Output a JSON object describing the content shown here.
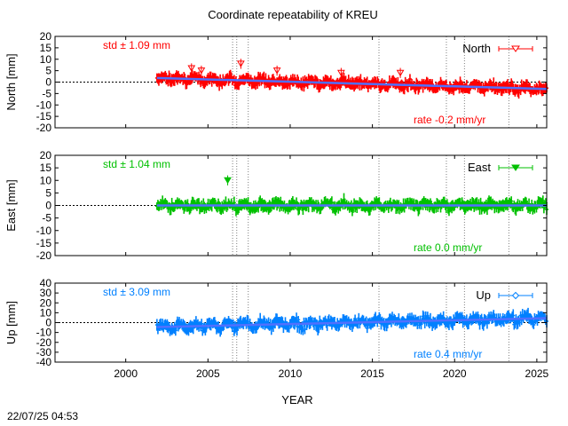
{
  "title": "Coordinate repeatability of KREU",
  "xlabel": "YEAR",
  "timestamp": "22/07/25 04:53",
  "colors": {
    "north": "#ff0000",
    "east": "#00c000",
    "up": "#0080ff",
    "trend": "#5070ff",
    "frame": "#000000",
    "event_lines": "#808080"
  },
  "chart_data": [
    {
      "type": "scatter",
      "component": "North",
      "ylabel": "North [mm]",
      "legend": "North",
      "legend_position": "top-right",
      "marker": "open-triangle-down",
      "std_text": "std ± 1.09 mm",
      "rate_text": "rate -0.2 mm/yr",
      "std_mm": 1.09,
      "rate_mm_per_yr": -0.2,
      "xlim": [
        1995.7,
        2025.6
      ],
      "ylim": [
        -20,
        20
      ],
      "yticks": [
        -20,
        -15,
        -10,
        -5,
        0,
        5,
        10,
        15,
        20
      ],
      "data_start": 2001.9,
      "data_end": 2025.6,
      "trend": {
        "x": [
          2001.9,
          2025.6
        ],
        "y": [
          1.8,
          -3.0
        ]
      },
      "error_bar_mm": 2.2,
      "outliers": [
        {
          "x": 2004.0,
          "y": 6
        },
        {
          "x": 2004.6,
          "y": 5
        },
        {
          "x": 2007.0,
          "y": 8
        },
        {
          "x": 2009.2,
          "y": 5
        },
        {
          "x": 2013.1,
          "y": 4
        },
        {
          "x": 2016.7,
          "y": 4
        }
      ]
    },
    {
      "type": "scatter",
      "component": "East",
      "ylabel": "East [mm]",
      "legend": "East",
      "legend_position": "top-right",
      "marker": "filled-triangle-down",
      "std_text": "std ± 1.04 mm",
      "rate_text": "rate  0.0 mm/yr",
      "std_mm": 1.04,
      "rate_mm_per_yr": 0.0,
      "xlim": [
        1995.7,
        2025.6
      ],
      "ylim": [
        -20,
        20
      ],
      "yticks": [
        -20,
        -15,
        -10,
        -5,
        0,
        5,
        10,
        15,
        20
      ],
      "data_start": 2001.9,
      "data_end": 2025.6,
      "trend": {
        "x": [
          2001.9,
          2025.6
        ],
        "y": [
          0.0,
          0.0
        ]
      },
      "error_bar_mm": 2.0,
      "outliers": [
        {
          "x": 2006.2,
          "y": 10
        }
      ]
    },
    {
      "type": "scatter",
      "component": "Up",
      "ylabel": "Up [mm]",
      "legend": "Up",
      "legend_position": "top-right",
      "marker": "open-diamond",
      "std_text": "std ± 3.09 mm",
      "rate_text": "rate  0.4 mm/yr",
      "std_mm": 3.09,
      "rate_mm_per_yr": 0.4,
      "xlim": [
        1995.7,
        2025.6
      ],
      "ylim": [
        -40,
        40
      ],
      "yticks": [
        -40,
        -30,
        -20,
        -10,
        0,
        10,
        20,
        30,
        40
      ],
      "data_start": 2001.9,
      "data_end": 2025.6,
      "trend": {
        "x": [
          2001.9,
          2025.6
        ],
        "y": [
          -4.5,
          4.5
        ]
      },
      "error_bar_mm": 5.0,
      "outliers": []
    }
  ],
  "xticks": [
    2000,
    2005,
    2010,
    2015,
    2020,
    2025
  ],
  "event_lines": [
    2006.5,
    2006.75,
    2007.45,
    2015.4,
    2019.5,
    2020.6,
    2023.3
  ]
}
